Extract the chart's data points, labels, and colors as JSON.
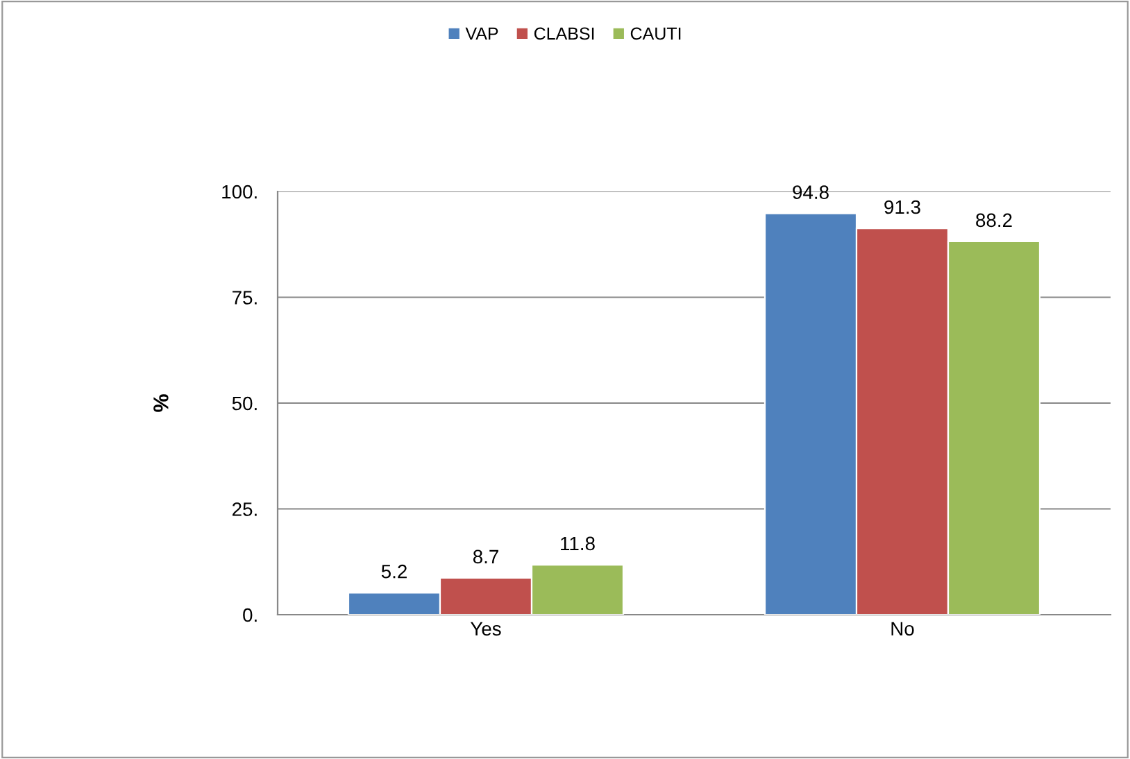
{
  "chart_data": {
    "type": "bar",
    "ylabel": "%",
    "categories": [
      "Yes",
      "No"
    ],
    "series": [
      {
        "name": "VAP",
        "color": "#4f81bd",
        "values": [
          5.2,
          94.8
        ]
      },
      {
        "name": "CLABSI",
        "color": "#c0504d",
        "values": [
          8.7,
          91.3
        ]
      },
      {
        "name": "CAUTI",
        "color": "#9bbb59",
        "values": [
          11.8,
          88.2
        ]
      }
    ],
    "ylim": [
      0,
      100
    ],
    "yticks": [
      {
        "value": 0,
        "label": "0."
      },
      {
        "value": 25,
        "label": "25."
      },
      {
        "value": 50,
        "label": "50."
      },
      {
        "value": 75,
        "label": "75."
      },
      {
        "value": 100,
        "label": "100."
      }
    ],
    "grid": "y",
    "legend": "top",
    "data_labels": true
  }
}
